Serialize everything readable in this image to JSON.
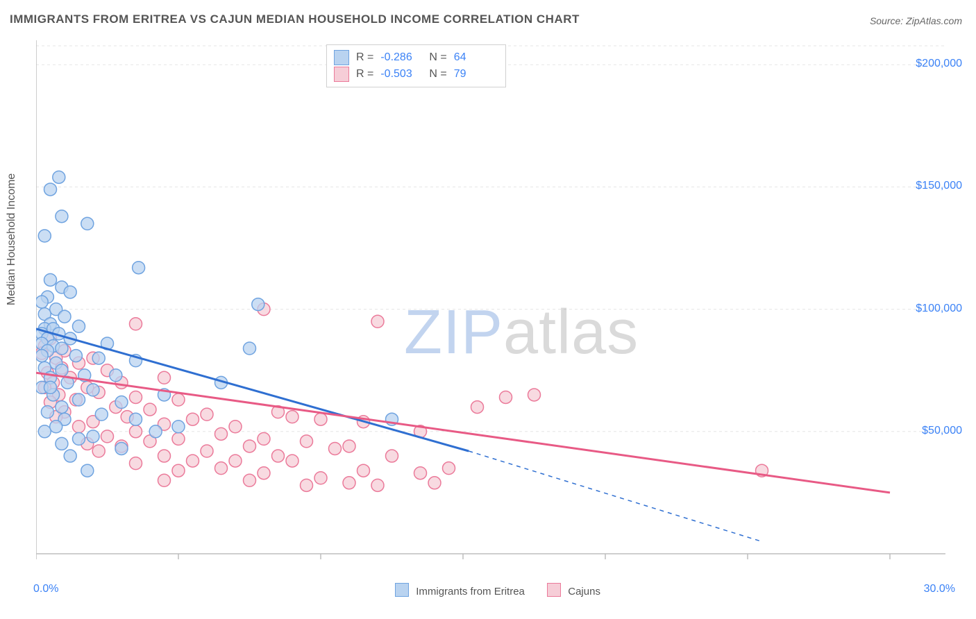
{
  "title": "IMMIGRANTS FROM ERITREA VS CAJUN MEDIAN HOUSEHOLD INCOME CORRELATION CHART",
  "source_label": "Source:",
  "source_value": "ZipAtlas.com",
  "ylabel": "Median Household Income",
  "watermark_zip": "ZIP",
  "watermark_rest": "atlas",
  "chart": {
    "type": "scatter",
    "background_color": "#ffffff",
    "grid_color": "#e5e5e5",
    "axis_color": "#bdbdbd",
    "xlim": [
      0,
      30
    ],
    "ylim": [
      0,
      210000
    ],
    "ytick_values": [
      50000,
      100000,
      150000,
      200000
    ],
    "ytick_labels": [
      "$50,000",
      "$100,000",
      "$150,000",
      "$200,000"
    ],
    "xtick_labels": [
      "0.0%",
      "30.0%"
    ],
    "series": [
      {
        "name": "Immigrants from Eritrea",
        "key": "eritrea",
        "fill": "#b9d3f0",
        "stroke": "#6fa3e0",
        "line_color": "#2f6fd1",
        "r_label": "R =",
        "r_value": "-0.286",
        "n_label": "N =",
        "n_value": "64",
        "regression": {
          "x1": 0,
          "y1": 92000,
          "x2": 15.2,
          "y2": 42000,
          "dash_x2": 25.5,
          "dash_y2": 5000
        },
        "points": [
          [
            0.8,
            154000
          ],
          [
            0.5,
            149000
          ],
          [
            0.9,
            138000
          ],
          [
            1.8,
            135000
          ],
          [
            0.3,
            130000
          ],
          [
            3.6,
            117000
          ],
          [
            0.5,
            112000
          ],
          [
            0.9,
            109000
          ],
          [
            0.4,
            105000
          ],
          [
            1.2,
            107000
          ],
          [
            0.2,
            103000
          ],
          [
            0.7,
            100000
          ],
          [
            0.3,
            98000
          ],
          [
            1.0,
            97000
          ],
          [
            0.5,
            94000
          ],
          [
            1.5,
            93000
          ],
          [
            0.3,
            92000
          ],
          [
            0.6,
            92000
          ],
          [
            0.2,
            90000
          ],
          [
            0.8,
            90000
          ],
          [
            0.4,
            88000
          ],
          [
            1.2,
            88000
          ],
          [
            0.2,
            86000
          ],
          [
            0.6,
            85000
          ],
          [
            2.5,
            86000
          ],
          [
            0.9,
            84000
          ],
          [
            0.4,
            83000
          ],
          [
            2.2,
            80000
          ],
          [
            3.5,
            79000
          ],
          [
            0.2,
            81000
          ],
          [
            1.4,
            81000
          ],
          [
            0.7,
            78000
          ],
          [
            7.8,
            102000
          ],
          [
            0.3,
            76000
          ],
          [
            0.9,
            75000
          ],
          [
            1.7,
            73000
          ],
          [
            0.5,
            72000
          ],
          [
            2.8,
            73000
          ],
          [
            1.1,
            70000
          ],
          [
            0.2,
            68000
          ],
          [
            2.0,
            67000
          ],
          [
            0.6,
            65000
          ],
          [
            1.5,
            63000
          ],
          [
            3.0,
            62000
          ],
          [
            0.9,
            60000
          ],
          [
            4.5,
            65000
          ],
          [
            0.4,
            58000
          ],
          [
            2.3,
            57000
          ],
          [
            1.0,
            55000
          ],
          [
            5.0,
            52000
          ],
          [
            0.7,
            52000
          ],
          [
            6.5,
            70000
          ],
          [
            3.5,
            55000
          ],
          [
            7.5,
            84000
          ],
          [
            2.0,
            48000
          ],
          [
            0.3,
            50000
          ],
          [
            4.2,
            50000
          ],
          [
            1.5,
            47000
          ],
          [
            0.9,
            45000
          ],
          [
            3.0,
            43000
          ],
          [
            1.2,
            40000
          ],
          [
            1.8,
            34000
          ],
          [
            12.5,
            55000
          ],
          [
            0.5,
            68000
          ]
        ]
      },
      {
        "name": "Cajuns",
        "key": "cajuns",
        "fill": "#f6cdd7",
        "stroke": "#eb7a9a",
        "line_color": "#e85a85",
        "r_label": "R =",
        "r_value": "-0.503",
        "n_label": "N =",
        "n_value": "79",
        "regression": {
          "x1": 0,
          "y1": 74000,
          "x2": 30,
          "y2": 25000
        },
        "points": [
          [
            3.5,
            94000
          ],
          [
            0.5,
            88000
          ],
          [
            0.3,
            85000
          ],
          [
            1.0,
            83000
          ],
          [
            0.7,
            80000
          ],
          [
            2.0,
            80000
          ],
          [
            0.2,
            82000
          ],
          [
            1.5,
            78000
          ],
          [
            0.9,
            76000
          ],
          [
            0.4,
            74000
          ],
          [
            2.5,
            75000
          ],
          [
            1.2,
            72000
          ],
          [
            0.6,
            70000
          ],
          [
            3.0,
            70000
          ],
          [
            4.5,
            72000
          ],
          [
            8.0,
            100000
          ],
          [
            1.8,
            68000
          ],
          [
            0.3,
            68000
          ],
          [
            2.2,
            66000
          ],
          [
            0.8,
            65000
          ],
          [
            3.5,
            64000
          ],
          [
            1.4,
            63000
          ],
          [
            5.0,
            63000
          ],
          [
            0.5,
            62000
          ],
          [
            2.8,
            60000
          ],
          [
            4.0,
            59000
          ],
          [
            1.0,
            58000
          ],
          [
            6.0,
            57000
          ],
          [
            3.2,
            56000
          ],
          [
            0.7,
            56000
          ],
          [
            5.5,
            55000
          ],
          [
            2.0,
            54000
          ],
          [
            4.5,
            53000
          ],
          [
            8.5,
            58000
          ],
          [
            1.5,
            52000
          ],
          [
            7.0,
            52000
          ],
          [
            3.5,
            50000
          ],
          [
            9.0,
            56000
          ],
          [
            6.5,
            49000
          ],
          [
            2.5,
            48000
          ],
          [
            10.0,
            55000
          ],
          [
            5.0,
            47000
          ],
          [
            8.0,
            47000
          ],
          [
            4.0,
            46000
          ],
          [
            11.5,
            54000
          ],
          [
            1.8,
            45000
          ],
          [
            7.5,
            44000
          ],
          [
            12.0,
            95000
          ],
          [
            3.0,
            44000
          ],
          [
            9.5,
            46000
          ],
          [
            6.0,
            42000
          ],
          [
            13.5,
            50000
          ],
          [
            4.5,
            40000
          ],
          [
            11.0,
            44000
          ],
          [
            2.2,
            42000
          ],
          [
            8.5,
            40000
          ],
          [
            10.5,
            43000
          ],
          [
            5.5,
            38000
          ],
          [
            14.5,
            35000
          ],
          [
            7.0,
            38000
          ],
          [
            12.5,
            40000
          ],
          [
            3.5,
            37000
          ],
          [
            9.0,
            38000
          ],
          [
            16.5,
            64000
          ],
          [
            6.5,
            35000
          ],
          [
            11.5,
            34000
          ],
          [
            8.0,
            33000
          ],
          [
            17.5,
            65000
          ],
          [
            5.0,
            34000
          ],
          [
            10.0,
            31000
          ],
          [
            7.5,
            30000
          ],
          [
            13.5,
            33000
          ],
          [
            4.5,
            30000
          ],
          [
            14.0,
            29000
          ],
          [
            9.5,
            28000
          ],
          [
            11.0,
            29000
          ],
          [
            12.0,
            28000
          ],
          [
            25.5,
            34000
          ],
          [
            15.5,
            60000
          ]
        ]
      }
    ]
  }
}
